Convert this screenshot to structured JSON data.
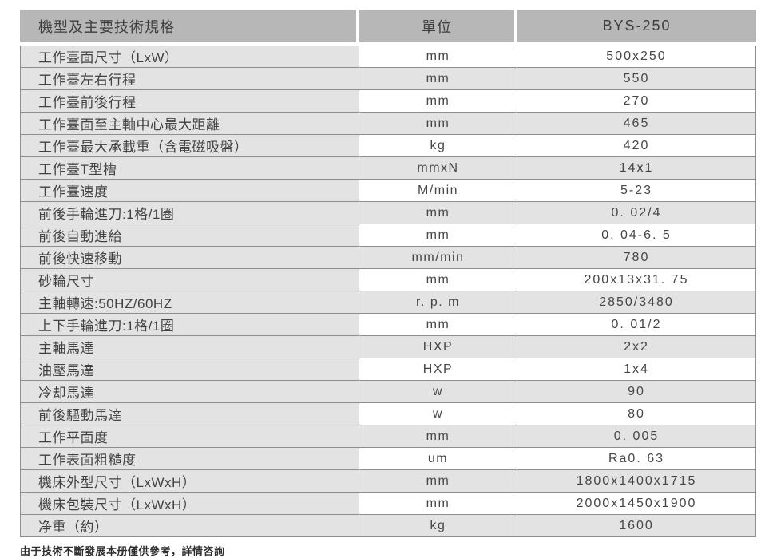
{
  "header": {
    "spec_column": "機型及主要技術規格",
    "unit_column": "單位",
    "model_column": "BYS-250"
  },
  "rows": [
    {
      "label": "工作臺面尺寸（LxW）",
      "unit": "mm",
      "value": "500x250"
    },
    {
      "label": "工作臺左右行程",
      "unit": "mm",
      "value": "550"
    },
    {
      "label": "工作臺前後行程",
      "unit": "mm",
      "value": "270"
    },
    {
      "label": "工作臺面至主軸中心最大距離",
      "unit": "mm",
      "value": "465"
    },
    {
      "label": "工作臺最大承載重（含電磁吸盤）",
      "unit": "kg",
      "value": "420"
    },
    {
      "label": "工作臺T型槽",
      "unit": "mmxN",
      "value": "14x1"
    },
    {
      "label": "工作臺速度",
      "unit": "M/min",
      "value": "5-23"
    },
    {
      "label": "前後手輪進刀:1格/1圈",
      "unit": "mm",
      "value": "0. 02/4"
    },
    {
      "label": "前後自動進給",
      "unit": "mm",
      "value": "0. 04-6. 5"
    },
    {
      "label": "前後快速移動",
      "unit": "mm/min",
      "value": "780"
    },
    {
      "label": "砂輪尺寸",
      "unit": "mm",
      "value": "200x13x31. 75"
    },
    {
      "label": "主軸轉速:50HZ/60HZ",
      "unit": "r. p. m",
      "value": "2850/3480"
    },
    {
      "label": "上下手輪進刀:1格/1圈",
      "unit": "mm",
      "value": "0. 01/2"
    },
    {
      "label": "主軸馬達",
      "unit": "HXP",
      "value": "2x2"
    },
    {
      "label": "油壓馬達",
      "unit": "HXP",
      "value": "1x4"
    },
    {
      "label": "冷却馬達",
      "unit": "w",
      "value": "90"
    },
    {
      "label": "前後驅動馬達",
      "unit": "w",
      "value": "80"
    },
    {
      "label": "工作平面度",
      "unit": "mm",
      "value": "0. 005"
    },
    {
      "label": "工作表面粗糙度",
      "unit": "um",
      "value": "Ra0. 63"
    },
    {
      "label": "機床外型尺寸（LxWxH）",
      "unit": "mm",
      "value": "1800x1400x1715"
    },
    {
      "label": "機床包裝尺寸（LxWxH）",
      "unit": "mm",
      "value": "2000x1450x1900"
    },
    {
      "label": "净重（約）",
      "unit": "kg",
      "value": "1600"
    }
  ],
  "footer": {
    "note": "由于技術不斷發展本册僅供參考，詳情咨詢"
  },
  "colors": {
    "header_bg": "#b7b7b7",
    "row_shaded_bg": "#e3e3e3",
    "row_plain_bg": "#ffffff",
    "border": "#8e8e8e",
    "text": "#424242"
  }
}
